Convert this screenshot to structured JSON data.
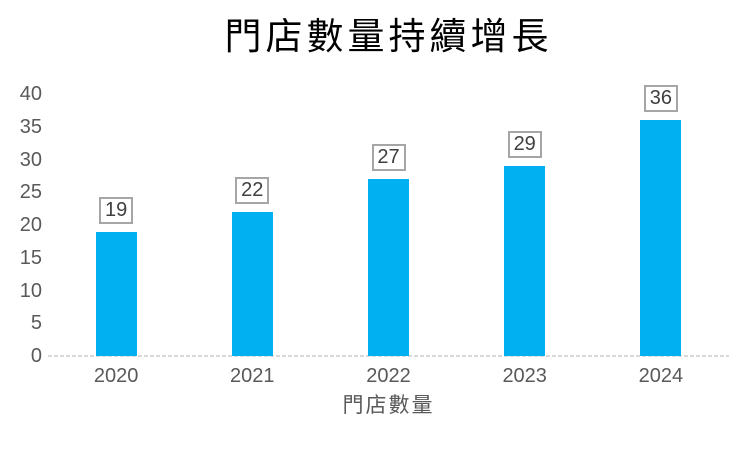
{
  "chart_data": {
    "type": "bar",
    "title": "門店數量持續增長",
    "categories": [
      "2020",
      "2021",
      "2022",
      "2023",
      "2024"
    ],
    "values": [
      19,
      22,
      27,
      29,
      36
    ],
    "data_labels": [
      19,
      22,
      27,
      29,
      36
    ],
    "xlabel": "門店數量",
    "ylabel": "",
    "ylim": [
      0,
      40
    ],
    "yticks": [
      0,
      5,
      10,
      15,
      20,
      25,
      30,
      35,
      40
    ],
    "gridlines": false,
    "legend_position": "none",
    "colors": {
      "bar": "#00B0F0",
      "axis_line": "#D9D9D9",
      "tick_label": "#595959",
      "title": "#000000",
      "data_label_text": "#404040",
      "data_label_border": "#A6A6A6",
      "background": "#FFFFFF"
    }
  }
}
